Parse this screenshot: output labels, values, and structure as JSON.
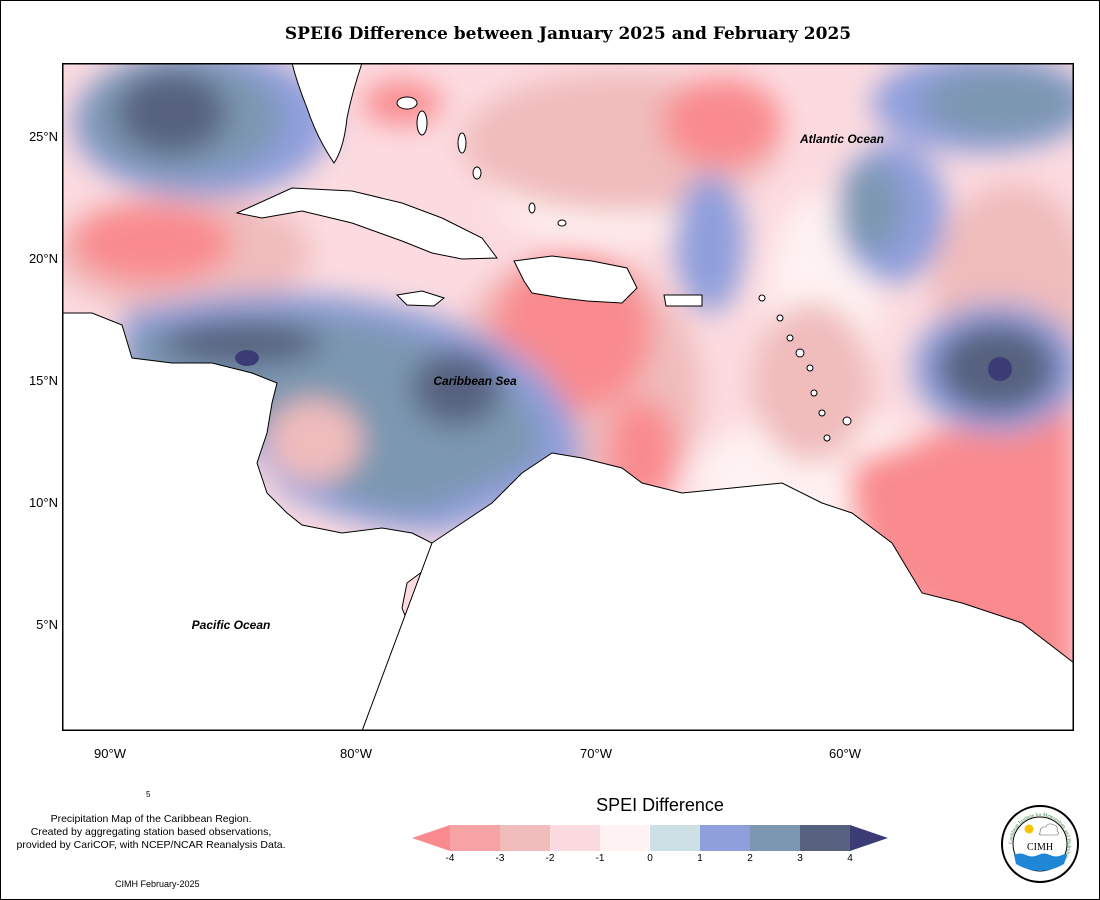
{
  "title": "SPEI6 Difference between January 2025 and February 2025",
  "map": {
    "labels": {
      "atlantic": "Atlantic Ocean",
      "caribbean": "Caribbean Sea",
      "pacific": "Pacific Ocean"
    },
    "latitude_labels": [
      "25°N",
      "20°N",
      "15°N",
      "10°N",
      "5°N"
    ],
    "longitude_labels": [
      "90°W",
      "80°W",
      "70°W",
      "60°W"
    ]
  },
  "description": {
    "lines": [
      "Precipitation Map of the Caribbean Region.",
      "Created by aggregating station based observations,",
      "provided by CariCOF, with NCEP/NCAR Reanalysis Data."
    ],
    "stray": "5"
  },
  "credit": "CIMH February-2025",
  "legend": {
    "title": "SPEI Difference",
    "ticks": [
      "-4",
      "-3",
      "-2",
      "-1",
      "0",
      "1",
      "2",
      "3",
      "4"
    ],
    "colors": [
      "#f98b8f",
      "#f7a2a4",
      "#f0bcbc",
      "#fcdbe0",
      "#fff2f2",
      "#cde0e6",
      "#8f9fdc",
      "#7c97b1",
      "#56627f",
      "#3b3c76"
    ]
  },
  "logo": {
    "text": "CIMH",
    "ring_text": "Caribbean Institute for Meteorology and Hydrology"
  }
}
